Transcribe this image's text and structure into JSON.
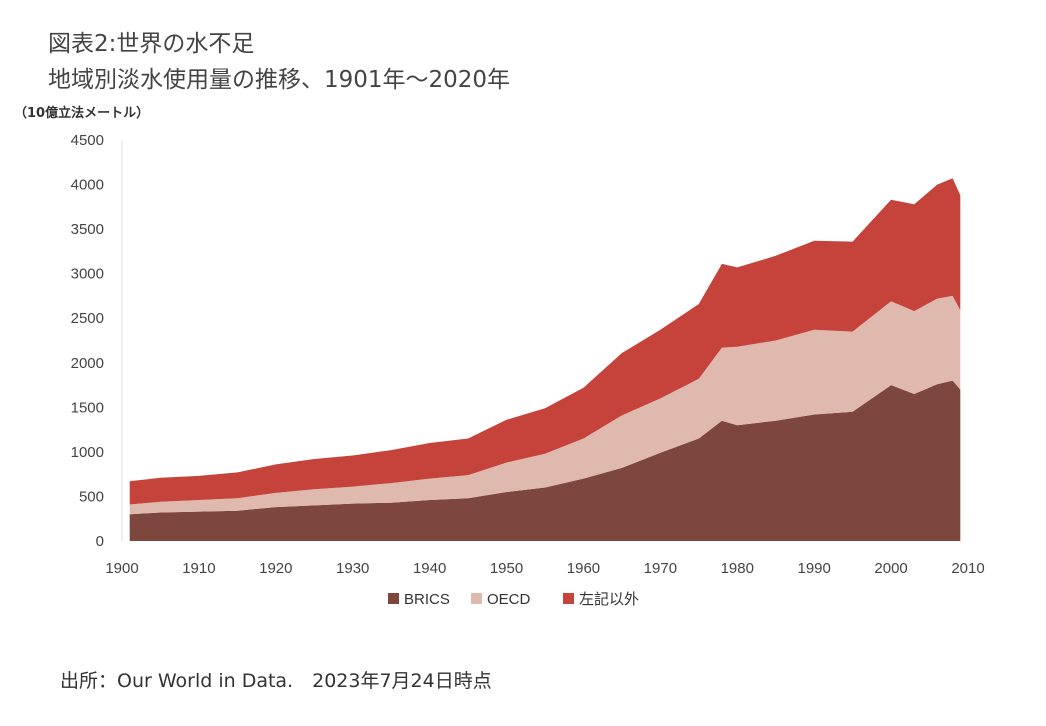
{
  "title": "図表2:世界の水不足",
  "subtitle": "地域別淡水使用量の推移、1901年〜2020年",
  "unit_label": "（10億立法メートル）",
  "source": "出所：Our World in Data.　2023年7月24日時点",
  "colors": {
    "BRICS": "#7d473d",
    "OECD": "#dfb8ae",
    "others": "#c5433b"
  },
  "chart_data": {
    "type": "area",
    "stacked": true,
    "xlim": [
      1900,
      2010
    ],
    "ylim": [
      0,
      4500
    ],
    "x_ticks": [
      1900,
      1910,
      1920,
      1930,
      1940,
      1950,
      1960,
      1970,
      1980,
      1990,
      2000,
      2010
    ],
    "y_ticks": [
      0,
      500,
      1000,
      1500,
      2000,
      2500,
      3000,
      3500,
      4000,
      4500
    ],
    "legend_position": "bottom",
    "grid": false,
    "x": [
      1901,
      1905,
      1910,
      1915,
      1920,
      1925,
      1930,
      1935,
      1940,
      1945,
      1950,
      1955,
      1960,
      1965,
      1970,
      1975,
      1978,
      1980,
      1985,
      1990,
      1995,
      2000,
      2003,
      2006,
      2008,
      2009
    ],
    "series": [
      {
        "name": "BRICS",
        "values": [
          300,
          320,
          330,
          340,
          380,
          400,
          420,
          430,
          460,
          480,
          550,
          600,
          700,
          820,
          990,
          1150,
          1350,
          1300,
          1350,
          1420,
          1450,
          1750,
          1650,
          1760,
          1800,
          1700
        ]
      },
      {
        "name": "OECD",
        "values": [
          110,
          120,
          130,
          140,
          160,
          180,
          190,
          220,
          240,
          260,
          330,
          380,
          450,
          590,
          610,
          670,
          820,
          880,
          900,
          950,
          900,
          940,
          930,
          960,
          950,
          890
        ]
      },
      {
        "name": "左記以外",
        "values": [
          260,
          270,
          270,
          290,
          320,
          340,
          350,
          370,
          400,
          410,
          480,
          510,
          570,
          700,
          770,
          840,
          940,
          890,
          950,
          1000,
          1010,
          1140,
          1200,
          1280,
          1320,
          1290
        ]
      }
    ]
  }
}
